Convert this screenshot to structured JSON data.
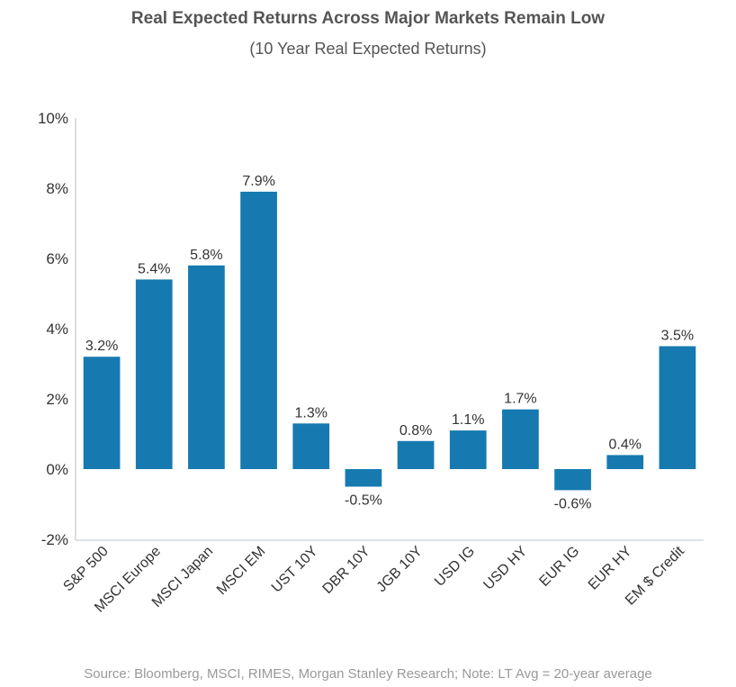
{
  "chart_data": {
    "type": "bar",
    "title": "Real Expected Returns Across Major Markets Remain Low",
    "subtitle": "(10 Year Real Expected Returns)",
    "xlabel": "",
    "ylabel": "",
    "categories": [
      "S&P 500",
      "MSCI Europe",
      "MSCI Japan",
      "MSCI EM",
      "UST 10Y",
      "DBR 10Y",
      "JGB 10Y",
      "USD IG",
      "USD HY",
      "EUR IG",
      "EUR HY",
      "EM $ Credit"
    ],
    "values": [
      3.2,
      5.4,
      5.8,
      7.9,
      1.3,
      -0.5,
      0.8,
      1.1,
      1.7,
      -0.6,
      0.4,
      3.5
    ],
    "data_labels": [
      "3.2%",
      "5.4%",
      "5.8%",
      "7.9%",
      "1.3%",
      "-0.5%",
      "0.8%",
      "1.1%",
      "1.7%",
      "-0.6%",
      "0.4%",
      "3.5%"
    ],
    "ylim": [
      -2,
      10
    ],
    "yticks": [
      -2,
      0,
      2,
      4,
      6,
      8,
      10
    ],
    "ytick_labels": [
      "-2%",
      "0%",
      "2%",
      "4%",
      "6%",
      "8%",
      "10%"
    ],
    "grid": false,
    "legend": null,
    "bar_color": "#167ab0",
    "source_note": "Source: Bloomberg, MSCI, RIMES, Morgan Stanley Research; Note: LT Avg = 20-year average"
  }
}
